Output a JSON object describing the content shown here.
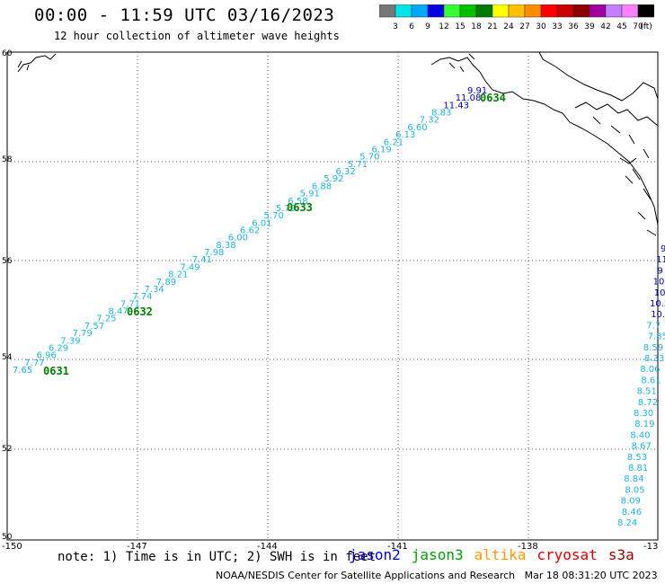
{
  "title": "00:00 - 11:59 UTC 03/16/2023",
  "subtitle": "12 hour collection of altimeter wave heights",
  "legend": {
    "labels": [
      "3",
      "6",
      "9",
      "12",
      "15",
      "18",
      "21",
      "24",
      "27",
      "30",
      "33",
      "36",
      "39",
      "42",
      "45",
      "70",
      "(ft)"
    ],
    "colors": [
      "#777777",
      "#00e5e5",
      "#00a8ff",
      "#0000e0",
      "#33ff33",
      "#00c000",
      "#007a00",
      "#ffff00",
      "#ffc000",
      "#ff8c00",
      "#ff0000",
      "#c80000",
      "#8b0000",
      "#a000a0",
      "#c080ff",
      "#ff80ff",
      "#000000"
    ]
  },
  "axes": {
    "lat_labels": [
      "60",
      "58",
      "56",
      "54",
      "52",
      "50"
    ],
    "lon_labels": [
      "-150",
      "-147",
      "-144",
      "-141",
      "-138",
      "-13"
    ]
  },
  "pass_labels": [
    "0631",
    "0632",
    "0633",
    "0634"
  ],
  "track_main": [
    "7.65",
    "7.77",
    "6.96",
    "6.29",
    "7.39",
    "7.79",
    "7.57",
    "7.25",
    "8.47",
    "7.71",
    "7.74",
    "7.34",
    "7.89",
    "8.21",
    "7.49",
    "7.41",
    "7.98",
    "8.38",
    "6.00",
    "6.62",
    "6.01",
    "5.70",
    "5.79",
    "6.58",
    "5.91",
    "6.88",
    "5.92",
    "6.32",
    "5.71",
    "5.70",
    "6.19",
    "6.21",
    "6.13",
    "6.60",
    "7.32",
    "8.83",
    "11.43",
    "11.08",
    "9.91"
  ],
  "track_east": [
    "9",
    "11",
    "9",
    "10",
    "10.",
    "10.3",
    "10.3",
    "7.7",
    "7.85",
    "8.59",
    "8.33",
    "8.06",
    "8.61",
    "8.51",
    "8.72",
    "8.30",
    "8.19",
    "8.40",
    "8.67",
    "8.53",
    "8.81",
    "8.84",
    "8.05",
    "8.09",
    "8.46",
    "8.24"
  ],
  "footer": {
    "note": "note: 1) Time is in UTC; 2) SWH is in feet",
    "satellites": [
      {
        "name": "jason2",
        "color": "#0000e0"
      },
      {
        "name": "jason3",
        "color": "#00a000"
      },
      {
        "name": "altika",
        "color": "#ff9900"
      },
      {
        "name": "cryosat",
        "color": "#e00000"
      },
      {
        "name": "s3a",
        "color": "#a00000"
      }
    ],
    "credit": "NOAA/NESDIS Center for Satellite Applications and Research   Mar 18 08:31:20 UTC 2023"
  }
}
